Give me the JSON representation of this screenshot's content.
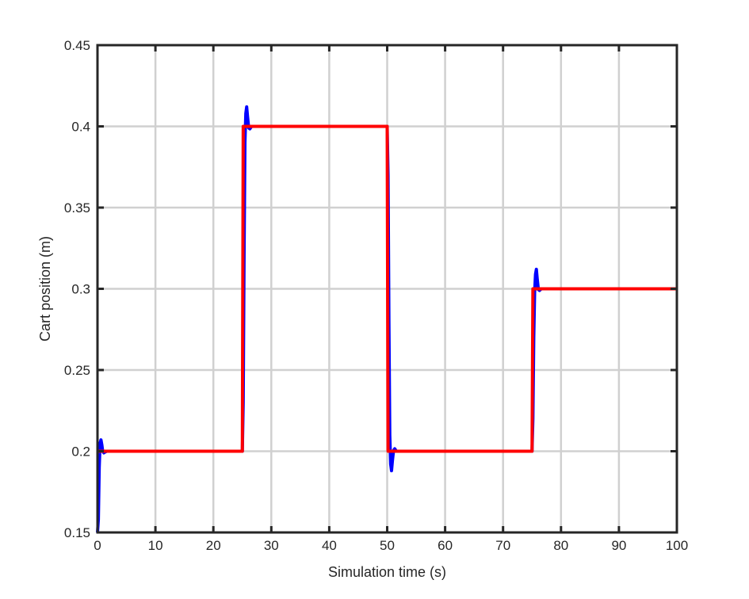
{
  "chart_data": {
    "type": "line",
    "title": "",
    "xlabel": "Simulation time (s)",
    "ylabel": "Cart position (m)",
    "xlim": [
      0,
      100
    ],
    "ylim": [
      0.15,
      0.45
    ],
    "xticks": [
      0,
      10,
      20,
      30,
      40,
      50,
      60,
      70,
      80,
      90,
      100
    ],
    "xtick_labels": [
      "0",
      "10",
      "20",
      "30",
      "40",
      "50",
      "60",
      "70",
      "80",
      "90",
      "100"
    ],
    "yticks": [
      0.15,
      0.2,
      0.25,
      0.3,
      0.35,
      0.4,
      0.45
    ],
    "ytick_labels": [
      "0.15",
      "0.2",
      "0.25",
      "0.3",
      "0.35",
      "0.4",
      "0.45"
    ],
    "grid": true,
    "legend": "none",
    "series": [
      {
        "color": "#0000ff",
        "x": [
          0,
          0.15,
          0.3,
          0.45,
          0.6,
          0.75,
          0.9,
          1.1,
          1.3,
          1.6,
          2,
          25,
          25.15,
          25.3,
          25.45,
          25.6,
          25.75,
          25.9,
          26.1,
          26.3,
          26.6,
          27,
          50,
          50.15,
          50.3,
          50.45,
          50.6,
          50.75,
          50.9,
          51.1,
          51.3,
          51.6,
          52,
          75,
          75.15,
          75.3,
          75.45,
          75.6,
          75.75,
          75.9,
          76.1,
          76.3,
          76.6,
          77,
          100
        ],
        "y": [
          0.15,
          0.158,
          0.19,
          0.205,
          0.207,
          0.204,
          0.2,
          0.199,
          0.1995,
          0.2,
          0.2,
          0.2,
          0.23,
          0.32,
          0.39,
          0.408,
          0.412,
          0.406,
          0.399,
          0.3985,
          0.4,
          0.4,
          0.4,
          0.37,
          0.28,
          0.21,
          0.192,
          0.188,
          0.194,
          0.2005,
          0.2015,
          0.2,
          0.2,
          0.2,
          0.22,
          0.27,
          0.298,
          0.309,
          0.312,
          0.306,
          0.2995,
          0.299,
          0.3,
          0.3,
          0.3
        ]
      },
      {
        "color": "#ff0000",
        "x": [
          0,
          25,
          25.15,
          26,
          50,
          50.15,
          51,
          75,
          75.15,
          76,
          100
        ],
        "y": [
          0.2,
          0.2,
          0.4,
          0.4,
          0.4,
          0.2,
          0.2,
          0.2,
          0.3,
          0.3,
          0.3
        ]
      }
    ]
  }
}
